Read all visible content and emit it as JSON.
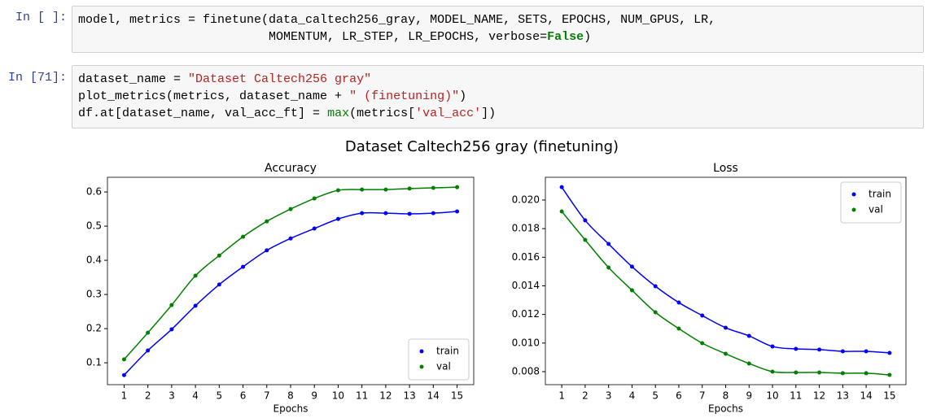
{
  "cells": [
    {
      "prompt": "In [ ]:",
      "lines": [
        [
          "model, metrics = finetune(data_caltech256_gray, MODEL_NAME, SETS, EPOCHS, NUM_GPUS, LR,"
        ],
        [
          "                          MOMENTUM, LR_STEP, LR_EPOCHS, verbose=",
          "False",
          ")"
        ]
      ]
    },
    {
      "prompt": "In [71]:",
      "lines": [
        [
          "dataset_name = ",
          "\"Dataset Caltech256 gray\""
        ],
        [
          "plot_metrics(metrics, dataset_name + ",
          "\" (finetuning)\"",
          ")"
        ],
        [
          "df.at[dataset_name, val_acc_ft] = ",
          "max",
          "(metrics[",
          "'val_acc'",
          "])"
        ]
      ]
    }
  ],
  "figure_title": "Dataset Caltech256 gray (finetuning)",
  "chart_data": [
    {
      "type": "line",
      "title": "Accuracy",
      "x_label": "Epochs",
      "x": [
        1,
        2,
        3,
        4,
        5,
        6,
        7,
        8,
        9,
        10,
        11,
        12,
        13,
        14,
        15
      ],
      "xlim": [
        0.3,
        15.7
      ],
      "xticks": [
        1,
        2,
        3,
        4,
        5,
        6,
        7,
        8,
        9,
        10,
        11,
        12,
        13,
        14,
        15
      ],
      "ylim": [
        0.036,
        0.643
      ],
      "yticks": [
        0.1,
        0.2,
        0.3,
        0.4,
        0.5,
        0.6
      ],
      "legend": "lower right",
      "series": [
        {
          "name": "train",
          "color": "#0000ff",
          "values": [
            0.064,
            0.136,
            0.198,
            0.267,
            0.329,
            0.381,
            0.429,
            0.464,
            0.493,
            0.521,
            0.538,
            0.538,
            0.536,
            0.538,
            0.543
          ]
        },
        {
          "name": "val",
          "color": "#008000",
          "values": [
            0.11,
            0.188,
            0.269,
            0.355,
            0.414,
            0.469,
            0.514,
            0.55,
            0.581,
            0.605,
            0.607,
            0.607,
            0.61,
            0.612,
            0.614
          ]
        }
      ]
    },
    {
      "type": "line",
      "title": "Loss",
      "x_label": "Epochs",
      "x": [
        1,
        2,
        3,
        4,
        5,
        6,
        7,
        8,
        9,
        10,
        11,
        12,
        13,
        14,
        15
      ],
      "xlim": [
        0.3,
        15.7
      ],
      "xticks": [
        1,
        2,
        3,
        4,
        5,
        6,
        7,
        8,
        9,
        10,
        11,
        12,
        13,
        14,
        15
      ],
      "ylim": [
        0.00709,
        0.02159
      ],
      "yticks": [
        0.008,
        {
          "value": 0.01,
          "label": "0.010"
        },
        0.012,
        0.014,
        0.016,
        0.018,
        {
          "value": 0.02,
          "label": "0.020"
        }
      ],
      "legend": "upper right",
      "series": [
        {
          "name": "train",
          "color": "#0000ff",
          "values": [
            0.0209,
            0.01858,
            0.01693,
            0.01534,
            0.01397,
            0.01283,
            0.01192,
            0.01107,
            0.0105,
            0.00976,
            0.00959,
            0.00954,
            0.00942,
            0.00942,
            0.00931
          ]
        },
        {
          "name": "val",
          "color": "#008000",
          "values": [
            0.0192,
            0.01721,
            0.01528,
            0.01369,
            0.01215,
            0.01101,
            0.00999,
            0.00925,
            0.00857,
            0.008,
            0.00794,
            0.00794,
            0.00789,
            0.00789,
            0.00777
          ]
        }
      ]
    }
  ]
}
